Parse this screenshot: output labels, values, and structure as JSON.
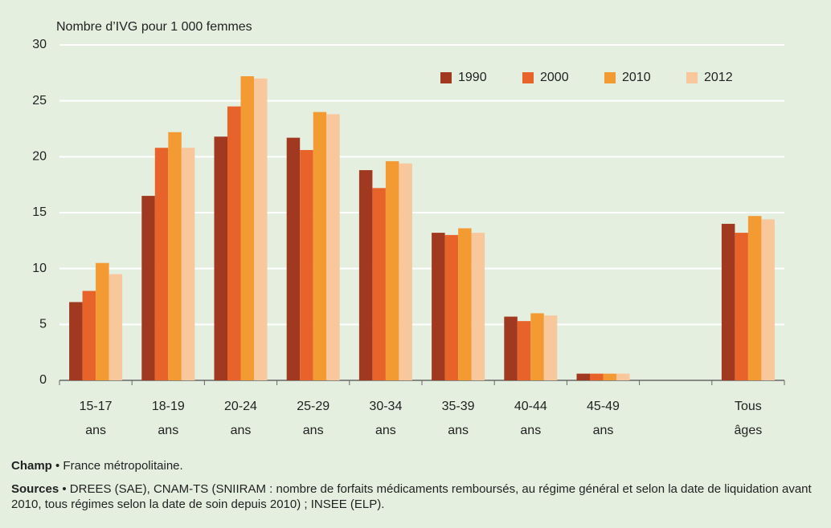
{
  "chart_data": {
    "type": "bar",
    "y_label": "Nombre d’IVG pour 1 000 femmes",
    "categories": [
      "15-17 ans",
      "18-19 ans",
      "20-24 ans",
      "25-29 ans",
      "30-34 ans",
      "35-39 ans",
      "40-44 ans",
      "45-49 ans",
      null,
      "Tous âges"
    ],
    "series": [
      {
        "name": "1990",
        "color": "#a0391f",
        "values": [
          7.0,
          16.5,
          21.8,
          21.7,
          18.8,
          13.2,
          5.7,
          0.6,
          null,
          14.0
        ]
      },
      {
        "name": "2000",
        "color": "#e8632a",
        "values": [
          8.0,
          20.8,
          24.5,
          20.6,
          17.2,
          13.0,
          5.3,
          0.6,
          null,
          13.2
        ]
      },
      {
        "name": "2010",
        "color": "#f39a32",
        "values": [
          10.5,
          22.2,
          27.2,
          24.0,
          19.6,
          13.6,
          6.0,
          0.6,
          null,
          14.7
        ]
      },
      {
        "name": "2012",
        "color": "#f9c79c",
        "values": [
          9.5,
          20.8,
          27.0,
          23.8,
          19.4,
          13.2,
          5.8,
          0.6,
          null,
          14.4
        ]
      }
    ],
    "ylim": [
      0,
      30
    ],
    "yticks": [
      0,
      5,
      10,
      15,
      20,
      25,
      30
    ],
    "grid": true,
    "legend": "top-right"
  },
  "notes": {
    "champ_label": "Champ",
    "champ_text": " • France métropolitaine.",
    "sources_label": "Sources",
    "sources_text": " • DREES (SAE), CNAM-TS (SNIIRAM : nombre de forfaits médicaments remboursés, au régime général et selon la date de liquidation avant 2010, tous régimes selon la date de soin depuis 2010) ; INSEE (ELP)."
  }
}
